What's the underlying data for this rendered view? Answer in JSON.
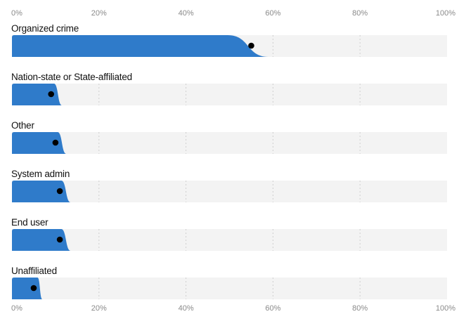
{
  "chart_data": {
    "type": "bar",
    "xlim": [
      0,
      100
    ],
    "ticks": [
      "0%",
      "20%",
      "40%",
      "60%",
      "80%",
      "100%"
    ],
    "tick_values": [
      0,
      20,
      40,
      60,
      80,
      100
    ],
    "grid": "vertical dashed",
    "categories": [
      "Organized crime",
      "Nation-state or State-affiliated",
      "Other",
      "System admin",
      "End user",
      "Unaffiliated"
    ],
    "values": [
      55,
      9,
      10,
      11,
      11,
      5
    ],
    "distribution_upper": [
      59,
      11.5,
      12.5,
      13.5,
      13.5,
      7
    ],
    "colors": {
      "bar": "#2f7bca",
      "background_band": "#f3f3f3",
      "point": "#000000",
      "grid": "#cfcfcf",
      "tick_text": "#8a8a8a",
      "label_text": "#111111"
    }
  }
}
